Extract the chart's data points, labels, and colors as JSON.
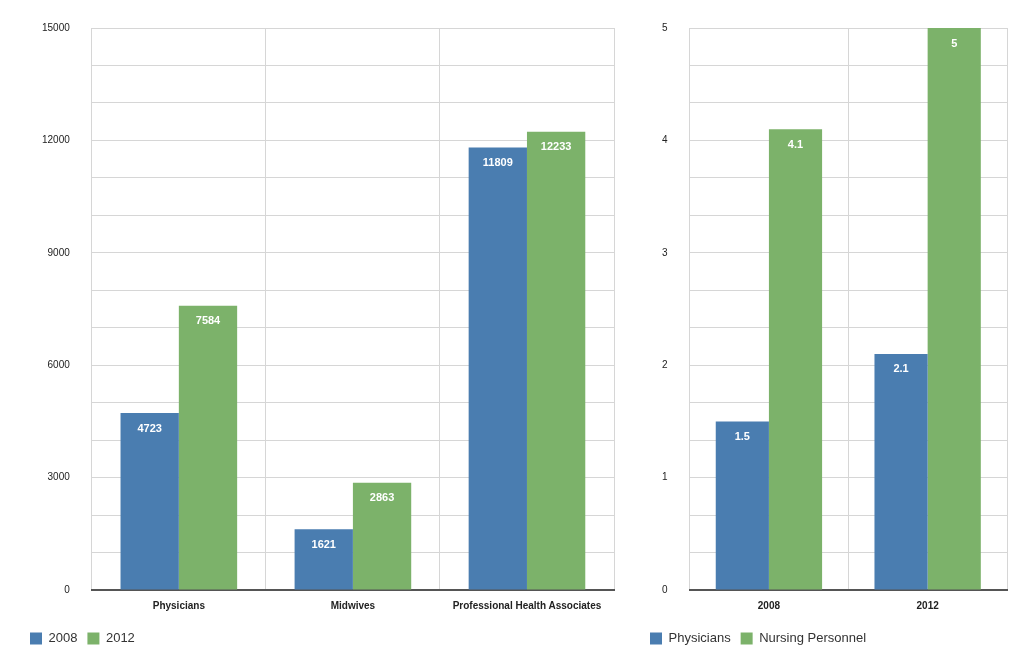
{
  "chart_data": [
    {
      "type": "bar",
      "categories": [
        "Physicians",
        "Midwives",
        "Professional Health Associates"
      ],
      "series": [
        {
          "name": "2008",
          "color": "#4a7db0",
          "values": [
            4723,
            1621,
            11809
          ]
        },
        {
          "name": "2012",
          "color": "#7cb26a",
          "values": [
            7584,
            2863,
            12233
          ]
        }
      ],
      "ylim": [
        0,
        15000
      ],
      "yticks": [
        0,
        {
          "value": 1000,
          "label": null
        },
        {
          "value": 2000,
          "label": null
        },
        3000,
        {
          "value": 4000,
          "label": null
        },
        {
          "value": 5000,
          "label": null
        },
        6000,
        {
          "value": 7000,
          "label": null
        },
        {
          "value": 8000,
          "label": null
        },
        9000,
        {
          "value": 10000,
          "label": null
        },
        {
          "value": 11000,
          "label": null
        },
        12000,
        {
          "value": 13000,
          "label": null
        },
        {
          "value": 14000,
          "label": null
        },
        15000
      ],
      "grid": true,
      "legend": "bottom left",
      "data_labels": true
    },
    {
      "type": "bar",
      "categories": [
        "2008",
        "2012"
      ],
      "series": [
        {
          "name": "Physicians",
          "color": "#4a7db0",
          "values": [
            1.5,
            2.1
          ]
        },
        {
          "name": "Nursing Personnel",
          "color": "#7cb26a",
          "values": [
            4.1,
            5
          ]
        }
      ],
      "ylim": [
        0,
        5
      ],
      "yticks": [
        0,
        {
          "value": 0.333,
          "label": null
        },
        {
          "value": 0.667,
          "label": null
        },
        1,
        {
          "value": 1.333,
          "label": null
        },
        {
          "value": 1.667,
          "label": null
        },
        2,
        {
          "value": 2.333,
          "label": null
        },
        {
          "value": 2.667,
          "label": null
        },
        3,
        {
          "value": 3.333,
          "label": null
        },
        {
          "value": 3.667,
          "label": null
        },
        4,
        {
          "value": 4.333,
          "label": null
        },
        {
          "value": 4.667,
          "label": null
        },
        5
      ],
      "grid": true,
      "legend": "bottom left",
      "data_labels": true
    }
  ]
}
